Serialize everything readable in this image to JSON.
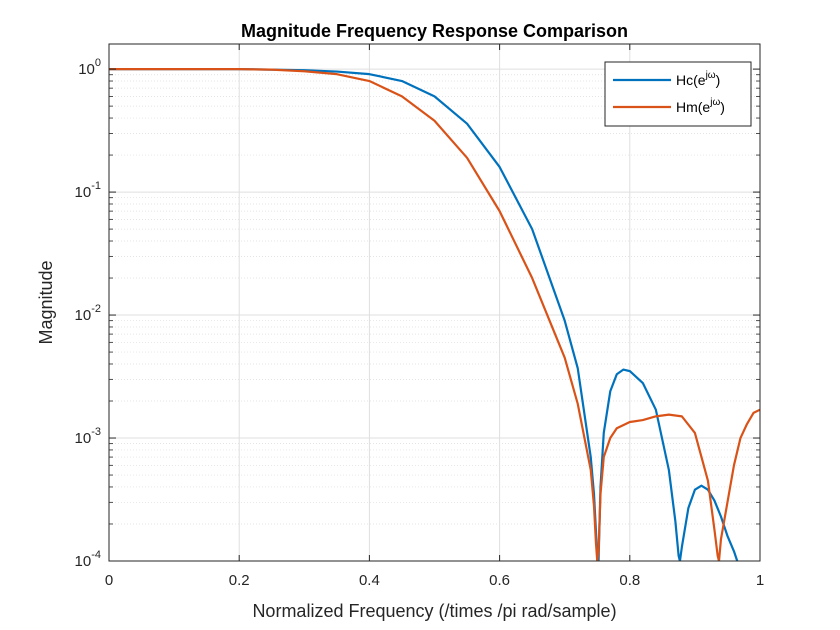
{
  "chart_data": {
    "type": "line",
    "title": "Magnitude Frequency Response Comparison",
    "xlabel": "Normalized Frequency (/times /pi rad/sample)",
    "ylabel": "Magnitude",
    "xlim": [
      0,
      1
    ],
    "ylim": [
      0.0001,
      1.6
    ],
    "yscale": "log",
    "grid": true,
    "minor_grid": true,
    "legend_position": "top-right",
    "x_ticks": [
      {
        "value": 0,
        "label": "0"
      },
      {
        "value": 0.2,
        "label": "0.2"
      },
      {
        "value": 0.4,
        "label": "0.4"
      },
      {
        "value": 0.6,
        "label": "0.6"
      },
      {
        "value": 0.8,
        "label": "0.8"
      },
      {
        "value": 1,
        "label": "1"
      }
    ],
    "y_ticks": [
      {
        "value": 1,
        "base": "10",
        "exp": "0"
      },
      {
        "value": 0.1,
        "base": "10",
        "exp": "-1"
      },
      {
        "value": 0.01,
        "base": "10",
        "exp": "-2"
      },
      {
        "value": 0.001,
        "base": "10",
        "exp": "-3"
      },
      {
        "value": 0.0001,
        "base": "10",
        "exp": "-4"
      }
    ],
    "series": [
      {
        "name": "Hc(e^{jω})",
        "legend_base": "Hc(e",
        "legend_sup": "jω",
        "legend_close": ")",
        "color": "#0072BD",
        "x": [
          0,
          0.1,
          0.2,
          0.3,
          0.35,
          0.4,
          0.45,
          0.5,
          0.55,
          0.6,
          0.65,
          0.7,
          0.72,
          0.74,
          0.745,
          0.75,
          0.752,
          0.755,
          0.76,
          0.77,
          0.78,
          0.79,
          0.8,
          0.82,
          0.84,
          0.86,
          0.87,
          0.875,
          0.877,
          0.88,
          0.89,
          0.9,
          0.91,
          0.92,
          0.93,
          0.94,
          0.95,
          0.96,
          0.965
        ],
        "y": [
          1,
          1,
          1,
          0.98,
          0.955,
          0.91,
          0.8,
          0.6,
          0.36,
          0.16,
          0.05,
          0.009,
          0.0037,
          0.0007,
          0.00035,
          0.00011,
          0.0001,
          0.0004,
          0.0011,
          0.0024,
          0.0033,
          0.0036,
          0.0035,
          0.0028,
          0.0017,
          0.00055,
          0.00021,
          0.00011,
          0.0001,
          0.00013,
          0.00027,
          0.00038,
          0.00041,
          0.00038,
          0.00031,
          0.00023,
          0.00016,
          0.00012,
          0.0001
        ]
      },
      {
        "name": "Hm(e^{jω})",
        "legend_base": "Hm(e",
        "legend_sup": "jω",
        "legend_close": ")",
        "color": "#D95319",
        "x": [
          0,
          0.1,
          0.2,
          0.25,
          0.3,
          0.35,
          0.4,
          0.45,
          0.5,
          0.55,
          0.6,
          0.65,
          0.7,
          0.72,
          0.74,
          0.745,
          0.748,
          0.75,
          0.752,
          0.755,
          0.76,
          0.77,
          0.78,
          0.8,
          0.82,
          0.84,
          0.86,
          0.88,
          0.9,
          0.92,
          0.93,
          0.935,
          0.937,
          0.94,
          0.95,
          0.96,
          0.97,
          0.98,
          0.99,
          1.0
        ],
        "y": [
          1,
          1,
          1,
          0.99,
          0.96,
          0.91,
          0.8,
          0.6,
          0.38,
          0.19,
          0.07,
          0.02,
          0.0045,
          0.0019,
          0.00055,
          0.00028,
          0.00014,
          0.0001,
          0.00012,
          0.00035,
          0.0007,
          0.001,
          0.0012,
          0.00135,
          0.0014,
          0.0015,
          0.00155,
          0.0015,
          0.0011,
          0.00045,
          0.00018,
          0.00011,
          0.0001,
          0.00015,
          0.0003,
          0.0006,
          0.001,
          0.0013,
          0.0016,
          0.0017
        ]
      }
    ]
  }
}
